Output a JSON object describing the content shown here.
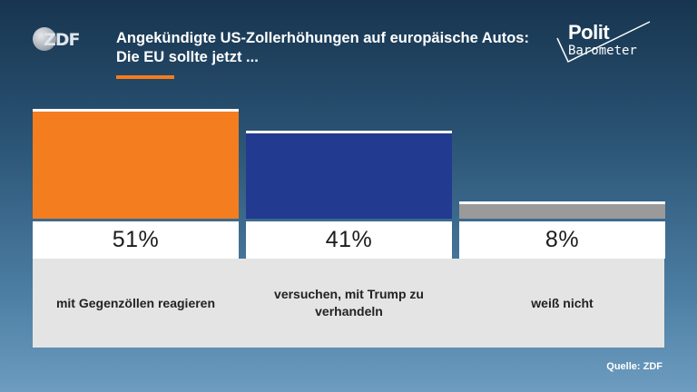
{
  "logo": {
    "zdf": "ZDF",
    "polit": "Polit",
    "barometer": "Barometer"
  },
  "title": "Angekündigte US-Zollerhöhungen auf europäische Autos: Die EU sollte jetzt ...",
  "source": "Quelle: ZDF",
  "colors": {
    "accent": "#f47d20",
    "series": [
      "#f47d20",
      "#223a8f",
      "#9a9a9a"
    ]
  },
  "chart_data": {
    "type": "bar",
    "categories": [
      "mit Gegenzöllen reagieren",
      "versuchen, mit Trump zu verhandeln",
      "weiß nicht"
    ],
    "values": [
      51,
      41,
      8
    ],
    "value_labels": [
      "51%",
      "41%",
      "8%"
    ],
    "unit": "%",
    "ylim": [
      0,
      51
    ],
    "grid": false,
    "legend": "none"
  }
}
